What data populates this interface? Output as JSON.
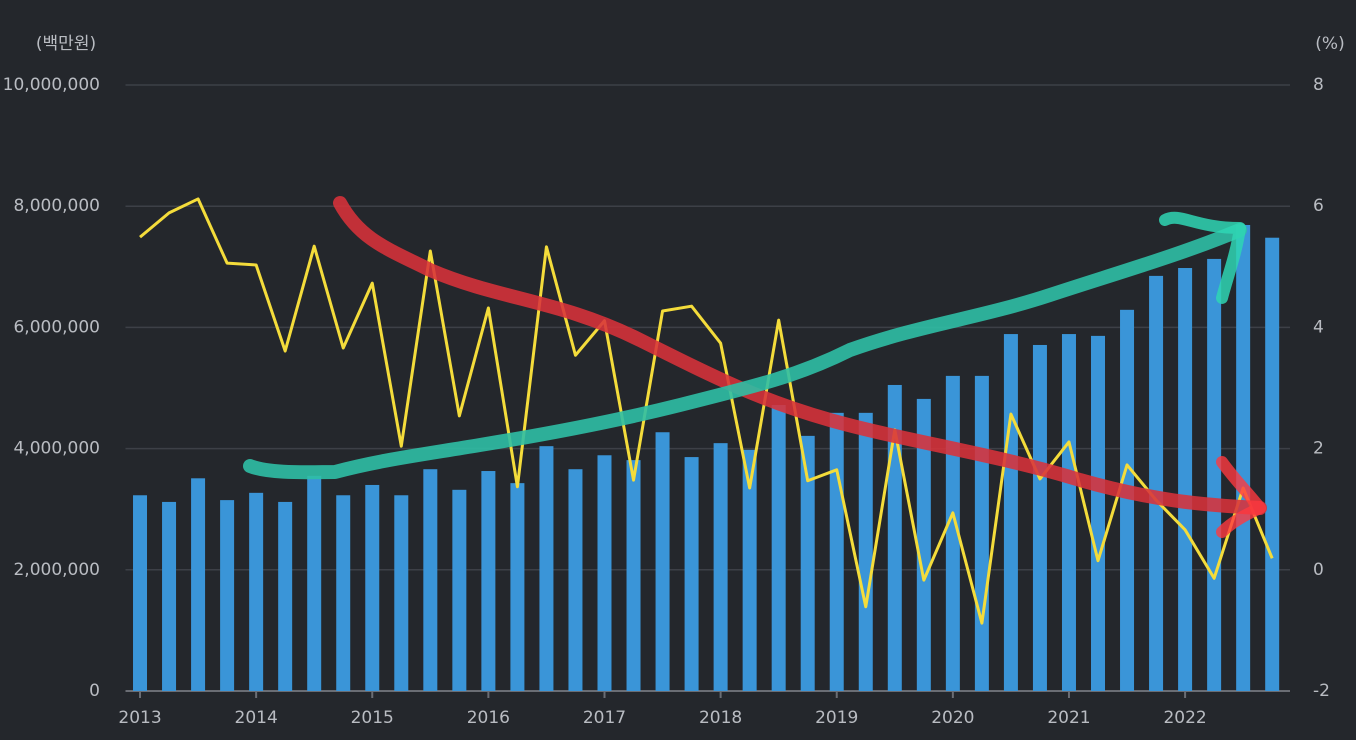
{
  "chart_data": {
    "type": "bar",
    "y_unit_label": "(백만원)",
    "y2_unit_label": "(%)",
    "categories": [
      "2013",
      null,
      null,
      null,
      "2014",
      null,
      null,
      null,
      "2015",
      null,
      null,
      null,
      "2016",
      null,
      null,
      null,
      "2017",
      null,
      null,
      null,
      "2018",
      null,
      null,
      null,
      "2019",
      null,
      null,
      null,
      "2020",
      null,
      null,
      null,
      "2021",
      null,
      null,
      null,
      "2022",
      null,
      null,
      null
    ],
    "series": [
      {
        "type": "bar",
        "color": "#3a95d8",
        "values": [
          3230000,
          3120000,
          3510000,
          3150000,
          3270000,
          3120000,
          3550000,
          3230000,
          3400000,
          3230000,
          3660000,
          3320000,
          3630000,
          3430000,
          4040000,
          3660000,
          3890000,
          3810000,
          4270000,
          3860000,
          4090000,
          3980000,
          4720000,
          4210000,
          4590000,
          4590000,
          5050000,
          4820000,
          5200000,
          5200000,
          5890000,
          5710000,
          5890000,
          5860000,
          6290000,
          6850000,
          6980000,
          7130000,
          7690000,
          7480000
        ]
      },
      {
        "type": "line",
        "color": "#f4dc3b",
        "axis": "y2",
        "values": [
          5.49,
          5.89,
          6.12,
          5.06,
          5.03,
          3.61,
          5.34,
          3.66,
          4.73,
          2.04,
          5.26,
          2.54,
          4.32,
          1.37,
          5.33,
          3.54,
          4.11,
          1.48,
          4.27,
          4.35,
          3.74,
          1.35,
          4.12,
          1.47,
          1.65,
          -0.61,
          2.31,
          -0.17,
          0.94,
          -0.88,
          2.57,
          1.5,
          2.11,
          0.15,
          1.73,
          1.15,
          0.66,
          -0.14,
          1.35,
          0.19
        ]
      }
    ],
    "ylim": [
      0,
      10000000
    ],
    "yticks": [
      0,
      {
        "value": 2000000,
        "label": "2,000,000"
      },
      {
        "value": 4000000,
        "label": "4,000,000"
      },
      {
        "value": 6000000,
        "label": "6,000,000"
      },
      {
        "value": 8000000,
        "label": "8,000,000"
      },
      {
        "value": 10000000,
        "label": "10,000,000"
      }
    ],
    "y2lim": [
      -2,
      8
    ],
    "y2ticks": [
      -2,
      0,
      2,
      4,
      6,
      8
    ],
    "grid": true
  }
}
